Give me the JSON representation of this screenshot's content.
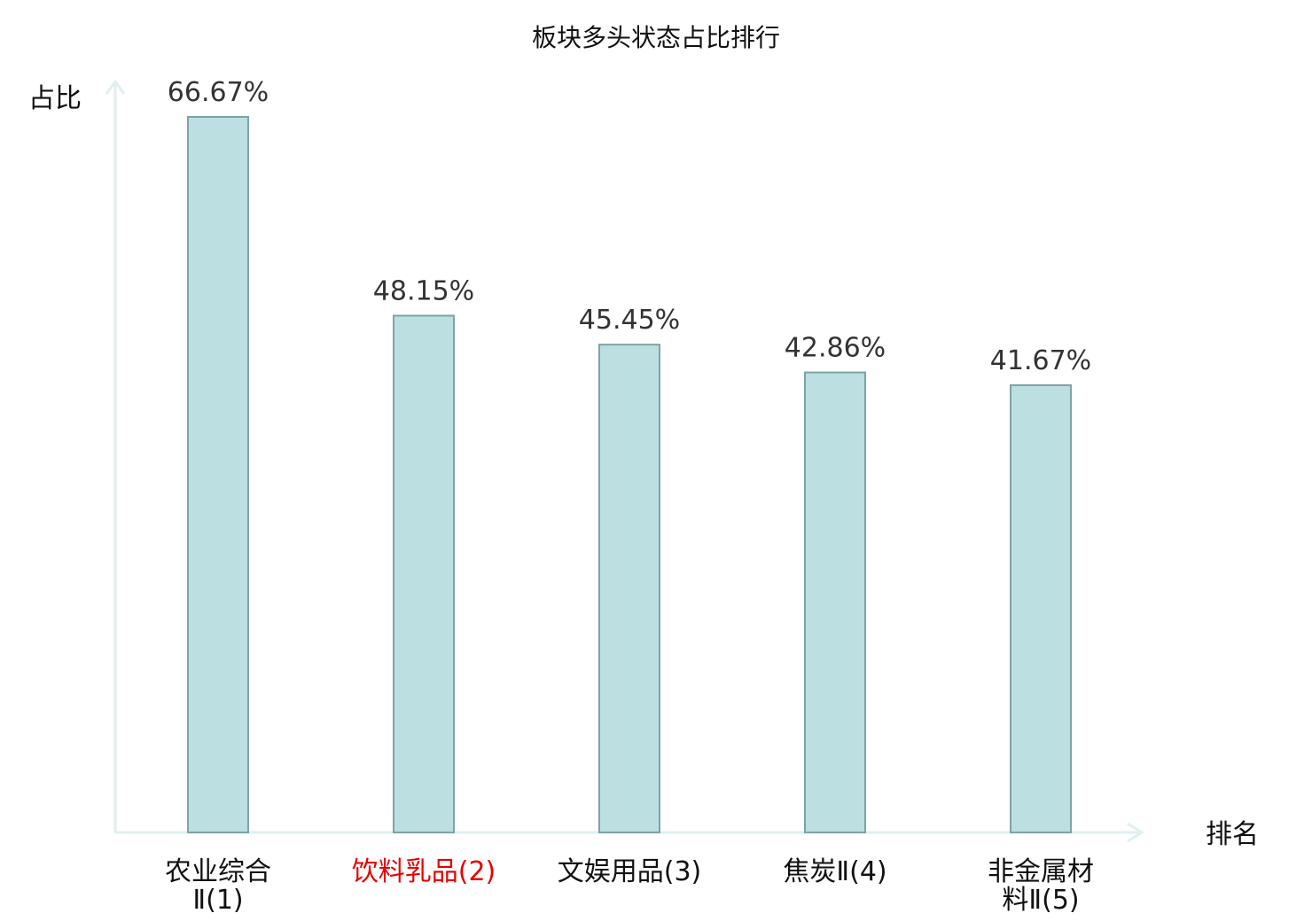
{
  "chart_data": {
    "type": "bar",
    "title": "板块多头状态占比排行",
    "ylabel": "占比",
    "xlabel": "排名",
    "unit": "%",
    "ylim": [
      0,
      75
    ],
    "categories": [
      {
        "lines": [
          "农业综合",
          "Ⅱ(1)"
        ],
        "highlight": false
      },
      {
        "lines": [
          "饮料乳品(2)"
        ],
        "highlight": true
      },
      {
        "lines": [
          "文娱用品(3)"
        ],
        "highlight": false
      },
      {
        "lines": [
          "焦炭Ⅱ(4)"
        ],
        "highlight": false
      },
      {
        "lines": [
          "非金属材",
          "料Ⅱ(5)"
        ],
        "highlight": false
      }
    ],
    "values": [
      66.67,
      48.15,
      45.45,
      42.86,
      41.67
    ],
    "value_labels": [
      "66.67%",
      "48.15%",
      "45.45%",
      "42.86%",
      "41.67%"
    ],
    "grid": false,
    "legend": "none"
  },
  "colors": {
    "bar_fill": "#bce0e2",
    "bar_stroke": "#7fa3a5",
    "axis": "#dff0ef",
    "text": "#111111",
    "value_text": "#333333",
    "highlight": "#e60000"
  }
}
